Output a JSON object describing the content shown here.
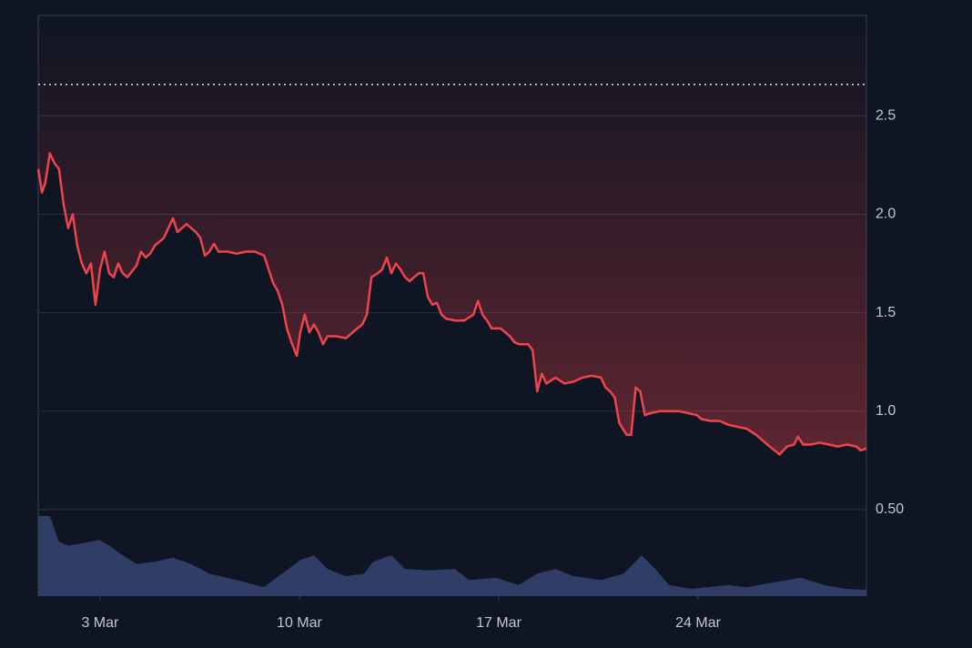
{
  "chart_data": {
    "type": "line",
    "price": {
      "color": "#f0444c",
      "x": [
        0.83,
        0.96,
        1.08,
        1.24,
        1.4,
        1.56,
        1.72,
        1.88,
        2.04,
        2.2,
        2.36,
        2.52,
        2.68,
        2.84,
        3.0,
        3.16,
        3.32,
        3.48,
        3.64,
        3.8,
        3.96,
        4.12,
        4.28,
        4.44,
        4.6,
        4.76,
        4.92,
        5.08,
        5.24,
        5.4,
        5.56,
        5.72,
        5.88,
        6.04,
        6.2,
        6.36,
        6.52,
        6.68,
        6.84,
        7.0,
        7.16,
        7.48,
        7.8,
        8.12,
        8.44,
        8.76,
        8.92,
        9.08,
        9.24,
        9.4,
        9.56,
        9.72,
        9.91,
        10.03,
        10.19,
        10.35,
        10.51,
        10.67,
        10.83,
        10.99,
        11.31,
        11.63,
        11.95,
        12.21,
        12.37,
        12.53,
        12.75,
        12.91,
        13.07,
        13.23,
        13.39,
        13.55,
        13.71,
        13.87,
        14.03,
        14.19,
        14.35,
        14.51,
        14.67,
        14.83,
        14.99,
        15.15,
        15.47,
        15.79,
        16.11,
        16.27,
        16.43,
        16.59,
        16.75,
        17.07,
        17.39,
        17.55,
        17.71,
        18.03,
        18.19,
        18.35,
        18.51,
        18.67,
        18.99,
        19.31,
        19.63,
        19.95,
        20.27,
        20.59,
        20.75,
        20.91,
        21.07,
        21.23,
        21.49,
        21.65,
        21.81,
        21.97,
        22.13,
        22.35,
        22.67,
        22.99,
        23.31,
        23.63,
        23.95,
        24.11,
        24.43,
        24.75,
        25.07,
        25.39,
        25.71,
        26.03,
        26.35,
        26.6,
        26.86,
        27.12,
        27.37,
        27.5,
        27.69,
        27.95,
        28.27,
        28.59,
        28.91,
        29.23,
        29.55,
        29.71,
        29.91
      ],
      "values": [
        2.23,
        2.11,
        2.16,
        2.31,
        2.26,
        2.23,
        2.05,
        1.93,
        2.0,
        1.84,
        1.75,
        1.7,
        1.75,
        1.54,
        1.72,
        1.81,
        1.7,
        1.68,
        1.75,
        1.7,
        1.68,
        1.71,
        1.74,
        1.81,
        1.78,
        1.8,
        1.84,
        1.86,
        1.88,
        1.93,
        1.98,
        1.91,
        1.93,
        1.95,
        1.93,
        1.91,
        1.88,
        1.79,
        1.81,
        1.85,
        1.81,
        1.81,
        1.8,
        1.81,
        1.81,
        1.79,
        1.72,
        1.65,
        1.61,
        1.54,
        1.42,
        1.35,
        1.28,
        1.4,
        1.49,
        1.4,
        1.44,
        1.4,
        1.34,
        1.38,
        1.38,
        1.37,
        1.41,
        1.44,
        1.49,
        1.68,
        1.7,
        1.72,
        1.78,
        1.7,
        1.75,
        1.72,
        1.68,
        1.66,
        1.68,
        1.7,
        1.7,
        1.58,
        1.54,
        1.55,
        1.49,
        1.47,
        1.46,
        1.46,
        1.49,
        1.56,
        1.49,
        1.46,
        1.42,
        1.42,
        1.38,
        1.35,
        1.34,
        1.34,
        1.31,
        1.1,
        1.19,
        1.14,
        1.17,
        1.14,
        1.15,
        1.17,
        1.18,
        1.17,
        1.12,
        1.1,
        1.07,
        0.94,
        0.88,
        0.88,
        1.12,
        1.1,
        0.98,
        0.99,
        1.0,
        1.0,
        1.0,
        0.99,
        0.98,
        0.96,
        0.95,
        0.95,
        0.93,
        0.92,
        0.91,
        0.88,
        0.84,
        0.81,
        0.78,
        0.82,
        0.83,
        0.87,
        0.83,
        0.83,
        0.84,
        0.83,
        0.82,
        0.83,
        0.82,
        0.8,
        0.81
      ]
    },
    "volume": {
      "color": "#34416e",
      "axis": "y2",
      "x": [
        0.83,
        1.24,
        1.56,
        1.88,
        2.36,
        3.0,
        3.32,
        3.8,
        4.28,
        4.92,
        5.56,
        6.2,
        6.84,
        7.8,
        8.75,
        9.39,
        10.03,
        10.51,
        10.99,
        11.63,
        12.27,
        12.59,
        13.23,
        13.71,
        14.51,
        15.47,
        15.95,
        16.9,
        17.7,
        18.34,
        18.98,
        19.62,
        20.58,
        21.38,
        22.02,
        22.5,
        22.98,
        23.78,
        25.06,
        25.7,
        26.65,
        27.61,
        28.41,
        29.21,
        29.91
      ],
      "values": [
        1.0,
        1.0,
        0.68,
        0.63,
        0.66,
        0.7,
        0.63,
        0.51,
        0.4,
        0.43,
        0.48,
        0.4,
        0.28,
        0.2,
        0.11,
        0.28,
        0.45,
        0.51,
        0.34,
        0.25,
        0.28,
        0.43,
        0.51,
        0.34,
        0.32,
        0.34,
        0.2,
        0.23,
        0.14,
        0.28,
        0.34,
        0.25,
        0.2,
        0.28,
        0.51,
        0.34,
        0.14,
        0.09,
        0.14,
        0.11,
        0.17,
        0.23,
        0.14,
        0.09,
        0.08
      ]
    },
    "reference_line": 2.66,
    "xlim": [
      0.83,
      29.91
    ],
    "xticks": [
      {
        "value": 3,
        "label": "3 Mar"
      },
      {
        "value": 10,
        "label": "10 Mar"
      },
      {
        "value": 17,
        "label": "17 Mar"
      },
      {
        "value": 24,
        "label": "24 Mar"
      }
    ],
    "ylim": [
      0.06,
      3.01
    ],
    "yticks": [
      2.5,
      {
        "value": 2,
        "label": "2.0"
      },
      1.5,
      {
        "value": 1,
        "label": "1.0"
      },
      {
        "value": 0.5,
        "label": "0.50"
      }
    ],
    "y2lim": [
      0,
      7.25
    ],
    "grid": true
  }
}
